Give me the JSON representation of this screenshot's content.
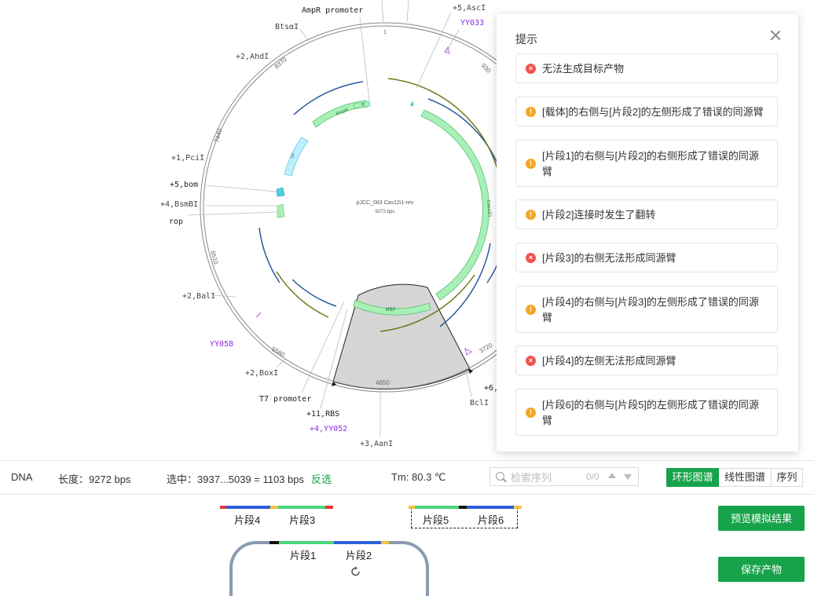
{
  "plasmid": {
    "name": "pJCC_083 Cas12i1-rev",
    "length_label": "9272 bps",
    "scale_ticks": [
      "1",
      "930",
      "3720",
      "4650",
      "5580",
      "6510",
      "7440",
      "8370"
    ],
    "features": [
      "AmpR",
      "ori",
      "rop",
      "Cas12i1",
      "MBP",
      "f0"
    ],
    "site_labels": [
      "AmpR promoter",
      "BtsαI",
      "+2,AhdI",
      "+1,PciI",
      "+5,bom",
      "+4,BsmBI",
      "rop",
      "+2,BalI",
      "YY058",
      "+2,BoxI",
      "T7 promoter",
      "+11,RBS",
      "+4,YY052",
      "+3,AanI",
      "BclI",
      "+6,",
      "+5,AscI",
      "YY033"
    ]
  },
  "tips": {
    "title": "提示",
    "items": [
      {
        "type": "error",
        "text": "无法生成目标产物"
      },
      {
        "type": "warn",
        "text": "[载体]的右侧与[片段2]的左侧形成了错误的同源臂"
      },
      {
        "type": "warn",
        "text": "[片段1]的右侧与[片段2]的右侧形成了错误的同源臂"
      },
      {
        "type": "warn",
        "text": "[片段2]连接时发生了翻转"
      },
      {
        "type": "error",
        "text": "[片段3]的右侧无法形成同源臂"
      },
      {
        "type": "warn",
        "text": "[片段4]的右侧与[片段3]的左侧形成了错误的同源臂"
      },
      {
        "type": "error",
        "text": "[片段4]的左侧无法形成同源臂"
      },
      {
        "type": "warn",
        "text": "[片段6]的右侧与[片段5]的左侧形成了错误的同源臂"
      }
    ]
  },
  "status": {
    "type": "DNA",
    "length": "长度：9272 bps",
    "selection": "选中：3937...5039 = 1103 bps",
    "invert": "反选",
    "tm": "Tm: 80.3 ℃",
    "search_placeholder": "检索序列",
    "search_count": "0/0",
    "views": [
      "环形图谱",
      "线性图谱",
      "序列"
    ]
  },
  "fragments": {
    "labels": [
      "片段4",
      "片段3",
      "片段5",
      "片段6",
      "片段1",
      "片段2"
    ]
  },
  "buttons": {
    "preview": "预览模拟结果",
    "save": "保存产物"
  },
  "colors": {
    "accent": "#16a34a",
    "error": "#ef5350",
    "warn": "#f5a623",
    "feature_green": "#a8f0b8",
    "feature_cyan": "#bfefff",
    "primer_purple": "#8a2be2"
  }
}
